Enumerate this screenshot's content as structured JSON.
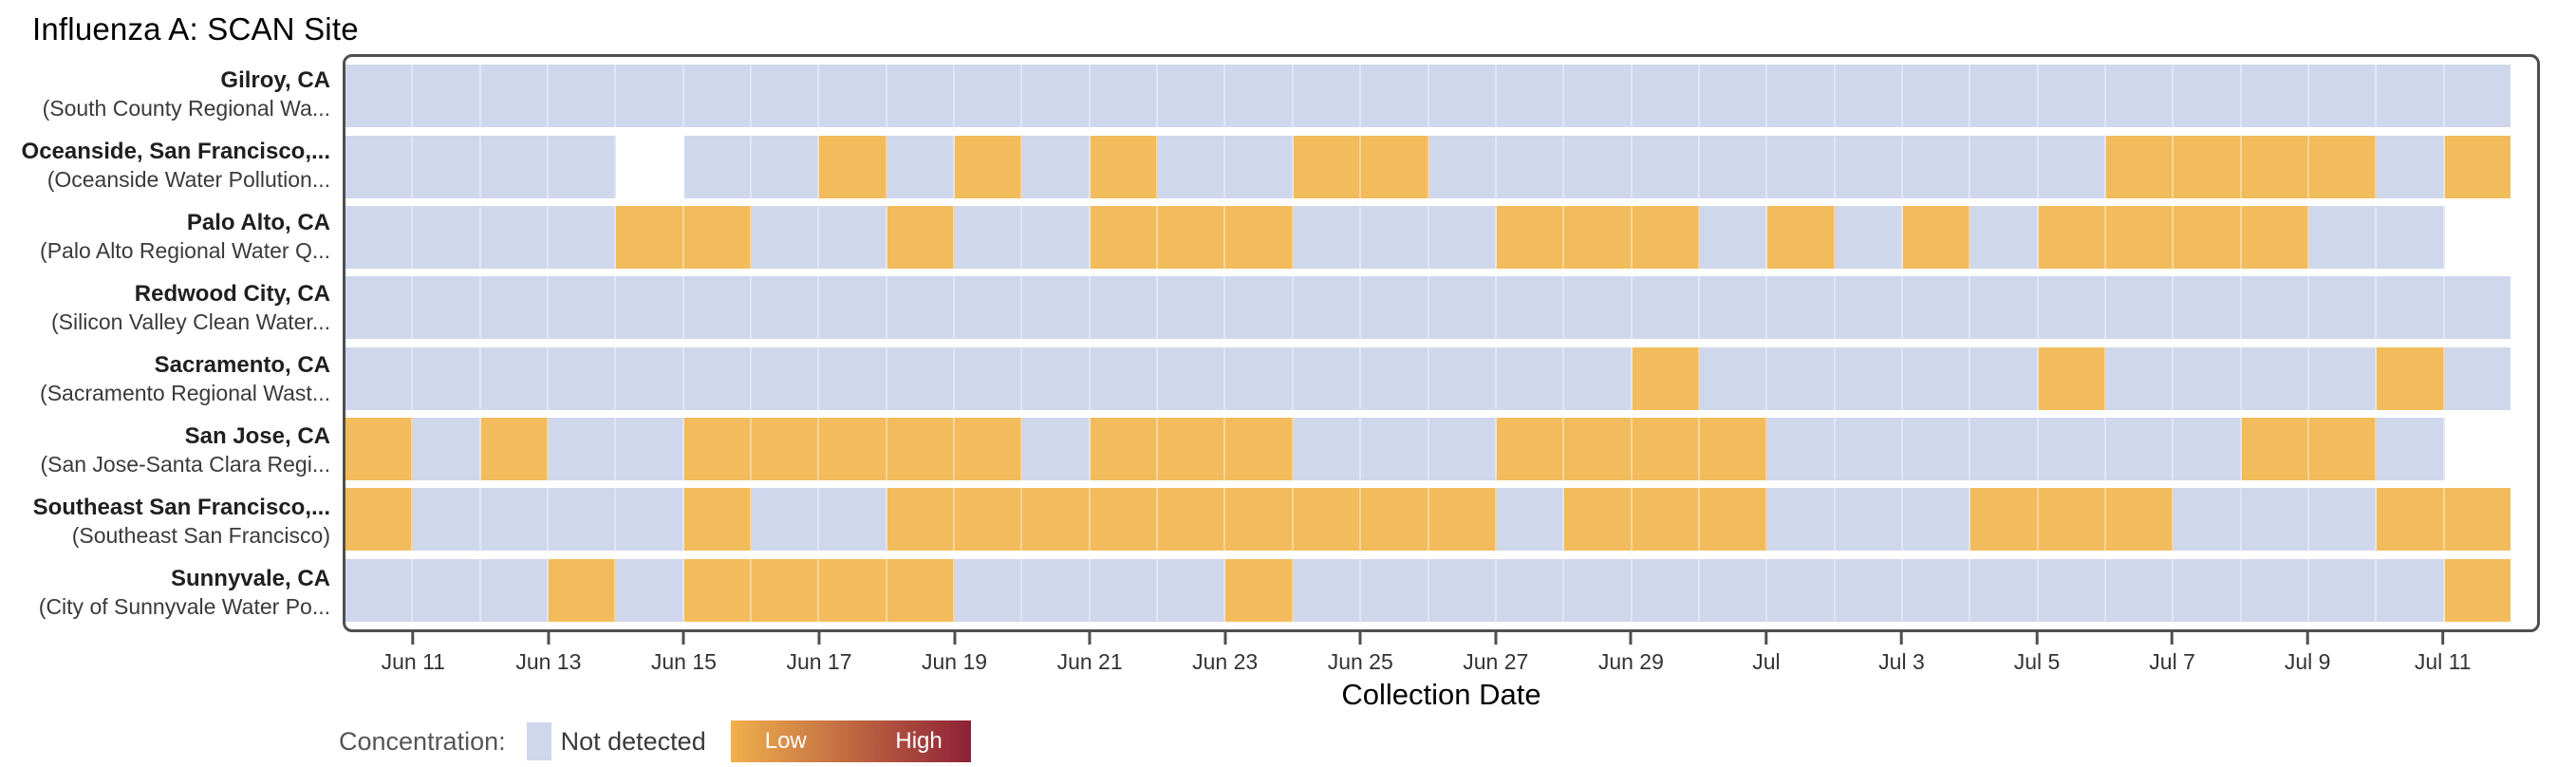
{
  "page": {
    "title": "Influenza A: SCAN Site"
  },
  "axis": {
    "xlabel": "Collection Date"
  },
  "legend": {
    "label": "Concentration:",
    "not_detected": "Not detected",
    "low": "Low",
    "high": "High"
  },
  "colors": {
    "not_detected": "#cfd7ed",
    "detected_low": "#f2bc5c",
    "gradient_low": "#f0b04c",
    "gradient_high": "#8e2137",
    "frame": "#4f4f4f"
  },
  "chart_data": {
    "type": "heatmap",
    "title": "Influenza A: SCAN Site",
    "xlabel": "Collection Date",
    "value_legend": {
      "0": "Not detected",
      "1": "Low",
      "null": "no sample (blank)"
    },
    "x_dates": [
      "Jun 10",
      "Jun 11",
      "Jun 12",
      "Jun 13",
      "Jun 14",
      "Jun 15",
      "Jun 16",
      "Jun 17",
      "Jun 18",
      "Jun 19",
      "Jun 20",
      "Jun 21",
      "Jun 22",
      "Jun 23",
      "Jun 24",
      "Jun 25",
      "Jun 26",
      "Jun 27",
      "Jun 28",
      "Jun 29",
      "Jun 30",
      "Jul 1",
      "Jul 2",
      "Jul 3",
      "Jul 4",
      "Jul 5",
      "Jul 6",
      "Jul 7",
      "Jul 8",
      "Jul 9",
      "Jul 10",
      "Jul 11"
    ],
    "x_ticks": [
      {
        "label": "Jun 11",
        "day_index": 1
      },
      {
        "label": "Jun 13",
        "day_index": 3
      },
      {
        "label": "Jun 15",
        "day_index": 5
      },
      {
        "label": "Jun 17",
        "day_index": 7
      },
      {
        "label": "Jun 19",
        "day_index": 9
      },
      {
        "label": "Jun 21",
        "day_index": 11
      },
      {
        "label": "Jun 23",
        "day_index": 13
      },
      {
        "label": "Jun 25",
        "day_index": 15
      },
      {
        "label": "Jun 27",
        "day_index": 17
      },
      {
        "label": "Jun 29",
        "day_index": 19
      },
      {
        "label": "Jul",
        "day_index": 21
      },
      {
        "label": "Jul 3",
        "day_index": 23
      },
      {
        "label": "Jul 5",
        "day_index": 25
      },
      {
        "label": "Jul 7",
        "day_index": 27
      },
      {
        "label": "Jul 9",
        "day_index": 29
      },
      {
        "label": "Jul 11",
        "day_index": 31
      }
    ],
    "series": [
      {
        "site": "Gilroy, CA",
        "facility": "(South County Regional Wa...",
        "values": [
          0,
          0,
          0,
          0,
          0,
          0,
          0,
          0,
          0,
          0,
          0,
          0,
          0,
          0,
          0,
          0,
          0,
          0,
          0,
          0,
          0,
          0,
          0,
          0,
          0,
          0,
          0,
          0,
          0,
          0,
          0,
          0
        ]
      },
      {
        "site": "Oceanside, San Francisco,...",
        "facility": "(Oceanside Water Pollution...",
        "values": [
          0,
          0,
          0,
          0,
          null,
          0,
          0,
          1,
          0,
          1,
          0,
          1,
          0,
          0,
          1,
          1,
          0,
          0,
          0,
          0,
          0,
          0,
          0,
          0,
          0,
          0,
          1,
          1,
          1,
          1,
          0,
          1
        ]
      },
      {
        "site": "Palo Alto, CA",
        "facility": "(Palo Alto Regional Water Q...",
        "values": [
          0,
          0,
          0,
          0,
          1,
          1,
          0,
          0,
          1,
          0,
          0,
          1,
          1,
          1,
          0,
          0,
          0,
          1,
          1,
          1,
          0,
          1,
          0,
          1,
          0,
          1,
          1,
          1,
          1,
          0,
          0,
          null
        ]
      },
      {
        "site": "Redwood City, CA",
        "facility": "(Silicon Valley Clean Water...",
        "values": [
          0,
          0,
          0,
          0,
          0,
          0,
          0,
          0,
          0,
          0,
          0,
          0,
          0,
          0,
          0,
          0,
          0,
          0,
          0,
          0,
          0,
          0,
          0,
          0,
          0,
          0,
          0,
          0,
          0,
          0,
          0,
          0
        ]
      },
      {
        "site": "Sacramento, CA",
        "facility": "(Sacramento Regional Wast...",
        "values": [
          0,
          0,
          0,
          0,
          0,
          0,
          0,
          0,
          0,
          0,
          0,
          0,
          0,
          0,
          0,
          0,
          0,
          0,
          0,
          1,
          0,
          0,
          0,
          0,
          0,
          1,
          0,
          0,
          0,
          0,
          1,
          0
        ]
      },
      {
        "site": "San Jose, CA",
        "facility": "(San Jose-Santa Clara Regi...",
        "values": [
          1,
          0,
          1,
          0,
          0,
          1,
          1,
          1,
          1,
          1,
          0,
          1,
          1,
          1,
          0,
          0,
          0,
          1,
          1,
          1,
          1,
          0,
          0,
          0,
          0,
          0,
          0,
          0,
          1,
          1,
          0,
          null
        ]
      },
      {
        "site": "Southeast San Francisco,...",
        "facility": "(Southeast San Francisco)",
        "values": [
          1,
          0,
          0,
          0,
          0,
          1,
          0,
          0,
          1,
          1,
          1,
          1,
          1,
          1,
          1,
          1,
          1,
          0,
          1,
          1,
          1,
          0,
          0,
          0,
          1,
          1,
          1,
          0,
          0,
          0,
          1,
          1
        ]
      },
      {
        "site": "Sunnyvale, CA",
        "facility": "(City of Sunnyvale Water Po...",
        "values": [
          0,
          0,
          0,
          1,
          0,
          1,
          1,
          1,
          1,
          0,
          0,
          0,
          0,
          1,
          0,
          0,
          0,
          0,
          0,
          0,
          0,
          0,
          0,
          0,
          0,
          0,
          0,
          0,
          0,
          0,
          0,
          1
        ]
      }
    ]
  }
}
